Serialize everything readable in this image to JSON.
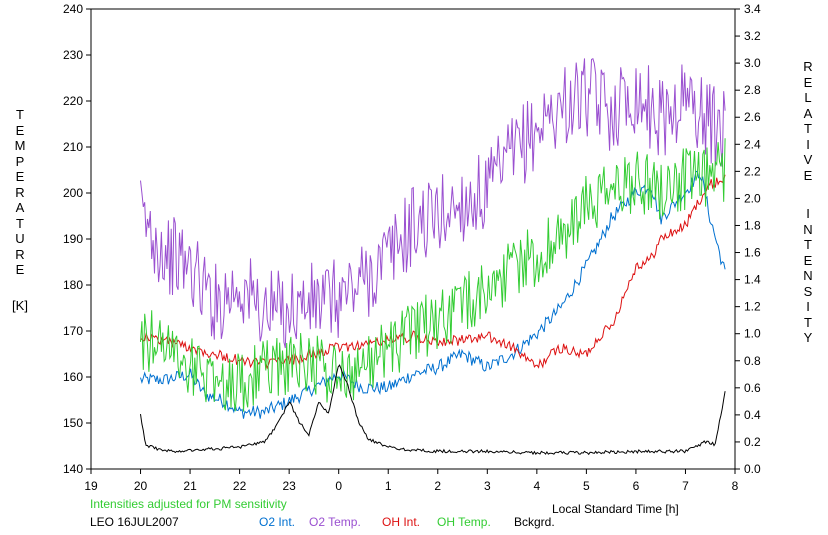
{
  "chart_data": {
    "type": "line",
    "left_axis_label_letters": [
      "T",
      "E",
      "M",
      "P",
      "E",
      "R",
      "A",
      "T",
      "U",
      "R",
      "E"
    ],
    "left_axis_unit": "[K]",
    "right_axis_label_letters_1": [
      "R",
      "E",
      "L",
      "A",
      "T",
      "I",
      "V",
      "E"
    ],
    "right_axis_label_letters_2": [
      "I",
      "N",
      "T",
      "E",
      "N",
      "S",
      "I",
      "T",
      "Y"
    ],
    "xlabel": "Local Standard Time [h]",
    "note": "Intensities adjusted for PM sensitivity",
    "station_date": "LEO 16JUL2007",
    "xlim": [
      19,
      32
    ],
    "ylim_left": [
      140,
      240
    ],
    "ylim_right": [
      0.0,
      3.4
    ],
    "x_tick_labels": [
      "19",
      "20",
      "21",
      "22",
      "23",
      "0",
      "1",
      "2",
      "3",
      "4",
      "5",
      "6",
      "7",
      "8"
    ],
    "left_tick_labels": [
      "140",
      "150",
      "160",
      "170",
      "180",
      "190",
      "200",
      "210",
      "220",
      "230",
      "240"
    ],
    "right_tick_labels": [
      "0.0",
      "0.2",
      "0.4",
      "0.6",
      "0.8",
      "1.0",
      "1.2",
      "1.4",
      "1.6",
      "1.8",
      "2.0",
      "2.2",
      "2.4",
      "2.6",
      "2.8",
      "3.0",
      "3.2",
      "3.4"
    ],
    "grid": false,
    "legend_position": "bottom",
    "series": [
      {
        "name": "O2 Int.",
        "axis": "right",
        "color": "#0070d0",
        "x": [
          20.0,
          20.5,
          21.0,
          21.3,
          21.7,
          22.0,
          22.5,
          23.0,
          23.5,
          24.0,
          24.5,
          25.0,
          25.5,
          26.0,
          26.5,
          27.0,
          27.5,
          28.0,
          28.5,
          29.0,
          29.3,
          29.5,
          30.0,
          30.3,
          30.5,
          31.0,
          31.3,
          31.5,
          31.8
        ],
        "values": [
          0.66,
          0.66,
          0.7,
          0.55,
          0.5,
          0.42,
          0.42,
          0.5,
          0.6,
          0.7,
          0.6,
          0.6,
          0.7,
          0.75,
          0.85,
          0.75,
          0.85,
          1.0,
          1.2,
          1.5,
          1.7,
          1.85,
          2.05,
          2.1,
          1.85,
          2.05,
          2.2,
          1.85,
          1.45
        ]
      },
      {
        "name": "O2 Temp.",
        "axis": "left",
        "color": "#9a50d0",
        "x": [
          20.0,
          20.5,
          21.0,
          21.5,
          22.0,
          22.5,
          23.0,
          23.5,
          24.0,
          24.5,
          25.0,
          25.5,
          26.0,
          26.5,
          27.0,
          27.5,
          28.0,
          28.5,
          29.0,
          29.5,
          30.0,
          30.5,
          31.0,
          31.5,
          31.8
        ],
        "values": [
          195,
          187,
          184,
          176,
          180,
          174,
          175,
          176,
          177,
          181,
          186,
          193,
          195,
          198,
          200,
          208,
          214,
          219,
          221,
          218,
          222,
          216,
          221,
          215,
          213
        ]
      },
      {
        "name": "OH Int.",
        "axis": "right",
        "color": "#dd1111",
        "x": [
          20.0,
          20.5,
          21.0,
          21.5,
          22.0,
          22.5,
          23.0,
          23.5,
          24.0,
          24.5,
          25.0,
          25.5,
          26.0,
          26.5,
          27.0,
          27.5,
          28.0,
          28.3,
          28.5,
          28.8,
          29.0,
          29.3,
          29.5,
          30.0,
          30.3,
          30.5,
          31.0,
          31.3,
          31.5,
          31.8
        ],
        "values": [
          0.98,
          0.95,
          0.9,
          0.85,
          0.8,
          0.78,
          0.8,
          0.85,
          0.9,
          0.92,
          0.95,
          0.98,
          0.95,
          0.95,
          0.98,
          0.9,
          0.75,
          0.85,
          0.9,
          0.85,
          0.85,
          1.0,
          1.05,
          1.5,
          1.55,
          1.7,
          1.8,
          2.0,
          2.1,
          2.15
        ]
      },
      {
        "name": "OH Temp.",
        "axis": "left",
        "color": "#33cc33",
        "x": [
          20.0,
          20.5,
          21.0,
          21.5,
          22.0,
          22.5,
          23.0,
          23.5,
          24.0,
          24.5,
          25.0,
          25.5,
          26.0,
          26.5,
          27.0,
          27.5,
          28.0,
          28.5,
          29.0,
          29.5,
          30.0,
          30.5,
          31.0,
          31.3,
          31.5,
          31.8
        ],
        "values": [
          168,
          168,
          162,
          160,
          158,
          162,
          163,
          163,
          160,
          163,
          166,
          170,
          172,
          175,
          179,
          184,
          186,
          190,
          197,
          200,
          203,
          201,
          203,
          202,
          204,
          205
        ]
      },
      {
        "name": "Bckgrd.",
        "axis": "right",
        "color": "#000000",
        "x": [
          20.0,
          20.1,
          20.5,
          21.0,
          21.5,
          22.0,
          22.5,
          22.8,
          23.0,
          23.2,
          23.4,
          23.6,
          23.8,
          24.0,
          24.2,
          24.4,
          24.6,
          25.0,
          25.5,
          26.0,
          27.0,
          28.0,
          29.0,
          30.0,
          31.0,
          31.4,
          31.6,
          31.8
        ],
        "values": [
          0.4,
          0.18,
          0.13,
          0.14,
          0.15,
          0.16,
          0.2,
          0.35,
          0.5,
          0.35,
          0.25,
          0.5,
          0.4,
          0.78,
          0.6,
          0.35,
          0.22,
          0.16,
          0.14,
          0.13,
          0.13,
          0.12,
          0.12,
          0.13,
          0.13,
          0.2,
          0.18,
          0.57
        ]
      }
    ]
  }
}
